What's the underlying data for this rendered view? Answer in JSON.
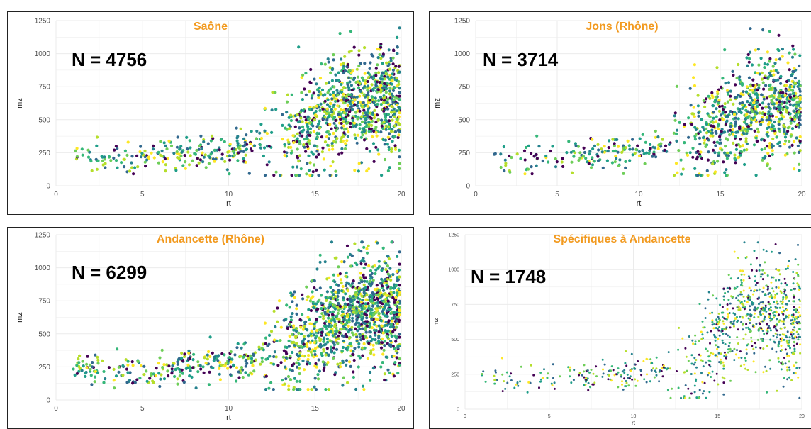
{
  "colors": {
    "title": "#f29a1f",
    "grid": "#ebebeb",
    "text": "#4d4d4d",
    "viridis": [
      "#440154",
      "#31688e",
      "#26828e",
      "#1f9e89",
      "#35b779",
      "#6ece58",
      "#b5de2b",
      "#fde725"
    ]
  },
  "chart_data": [
    {
      "type": "scatter",
      "title": "Saône",
      "annotation": "N = 4756",
      "n": 4756,
      "xlabel": "rt",
      "ylabel": "mz",
      "xlim": [
        0,
        20
      ],
      "ylim": [
        0,
        1250
      ],
      "xticks": [
        0,
        5,
        10,
        15,
        20
      ],
      "yticks": [
        0,
        250,
        500,
        750,
        1000,
        1250
      ],
      "grid": true,
      "legend": "none",
      "density_profile": [
        [
          1,
          220
        ],
        [
          3,
          200
        ],
        [
          5,
          210
        ],
        [
          7,
          240
        ],
        [
          9,
          250
        ],
        [
          11,
          290
        ],
        [
          13,
          350
        ],
        [
          15,
          470
        ],
        [
          17,
          620
        ],
        [
          19,
          640
        ],
        [
          20,
          600
        ]
      ]
    },
    {
      "type": "scatter",
      "title": "Jons (Rhône)",
      "annotation": "N = 3714",
      "n": 3714,
      "xlabel": "rt",
      "ylabel": "mz",
      "xlim": [
        0,
        20
      ],
      "ylim": [
        0,
        1250
      ],
      "xticks": [
        0,
        5,
        10,
        15,
        20
      ],
      "yticks": [
        0,
        250,
        500,
        750,
        1000,
        1250
      ],
      "grid": true,
      "legend": "none",
      "density_profile": [
        [
          1,
          220
        ],
        [
          3,
          200
        ],
        [
          5,
          210
        ],
        [
          7,
          240
        ],
        [
          9,
          255
        ],
        [
          11,
          290
        ],
        [
          13,
          350
        ],
        [
          15,
          460
        ],
        [
          17,
          600
        ],
        [
          19,
          600
        ],
        [
          20,
          560
        ]
      ]
    },
    {
      "type": "scatter",
      "title": "Andancette (Rhône)",
      "annotation": "N = 6299",
      "n": 6299,
      "xlabel": "rt",
      "ylabel": "mz",
      "xlim": [
        0,
        20
      ],
      "ylim": [
        0,
        1250
      ],
      "xticks": [
        0,
        5,
        10,
        15,
        20
      ],
      "yticks": [
        0,
        250,
        500,
        750,
        1000,
        1250
      ],
      "grid": true,
      "legend": "none",
      "density_profile": [
        [
          1,
          230
        ],
        [
          3,
          200
        ],
        [
          5,
          210
        ],
        [
          7,
          240
        ],
        [
          9,
          255
        ],
        [
          11,
          300
        ],
        [
          13,
          380
        ],
        [
          15,
          520
        ],
        [
          17,
          680
        ],
        [
          19,
          690
        ],
        [
          20,
          650
        ]
      ]
    },
    {
      "type": "scatter",
      "title": "Spécifiques à Andancette",
      "annotation": "N = 1748",
      "n": 1748,
      "xlabel": "rt",
      "ylabel": "mz",
      "xlim": [
        0,
        20
      ],
      "ylim": [
        0,
        1250
      ],
      "xticks": [
        0,
        5,
        10,
        15,
        20
      ],
      "yticks": [
        0,
        250,
        500,
        750,
        1000,
        1250
      ],
      "grid": true,
      "legend": "none",
      "density_profile": [
        [
          1,
          220
        ],
        [
          3,
          200
        ],
        [
          6,
          220
        ],
        [
          9,
          250
        ],
        [
          11,
          270
        ],
        [
          13,
          300
        ],
        [
          15,
          480
        ],
        [
          16,
          650
        ],
        [
          17,
          700
        ],
        [
          18,
          680
        ],
        [
          19,
          650
        ],
        [
          20,
          600
        ]
      ]
    }
  ]
}
